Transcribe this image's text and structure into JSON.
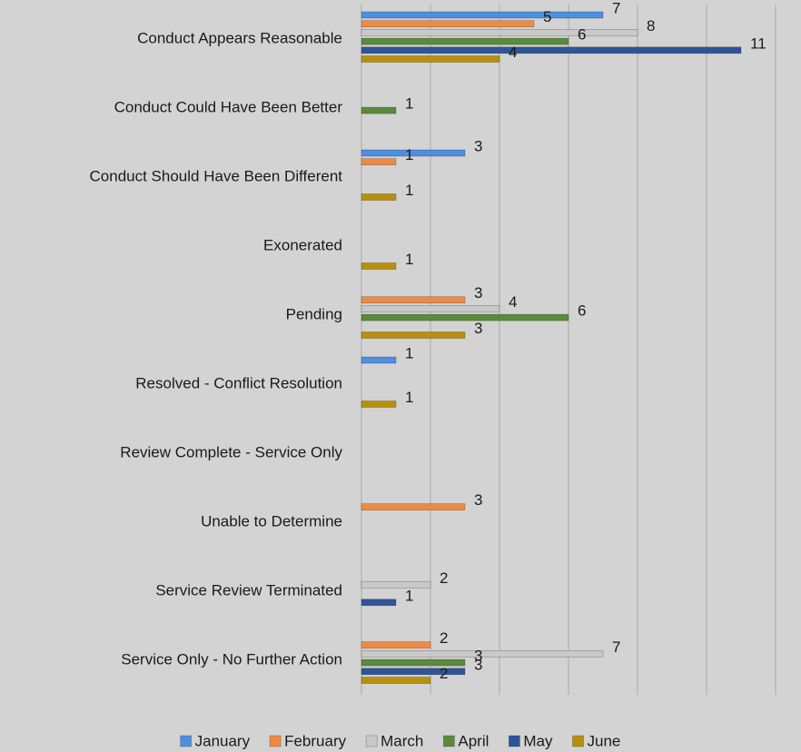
{
  "chart_data": {
    "type": "bar",
    "orientation": "horizontal",
    "categories": [
      "Conduct Appears Reasonable",
      "Conduct Could Have Been Better",
      "Conduct Should Have Been Different",
      "Exonerated",
      "Pending",
      "Resolved - Conflict Resolution",
      "Review Complete - Service Only",
      "Unable to Determine",
      "Service Review Terminated",
      "Service Only - No Further Action"
    ],
    "series": [
      {
        "name": "January",
        "color": "#4f8fe0",
        "values": [
          7,
          null,
          3,
          null,
          null,
          1,
          null,
          null,
          null,
          null
        ]
      },
      {
        "name": "February",
        "color": "#ef8a45",
        "values": [
          5,
          null,
          1,
          null,
          3,
          null,
          null,
          3,
          null,
          2
        ]
      },
      {
        "name": "March",
        "color": "#c9c9c9",
        "values": [
          8,
          null,
          null,
          null,
          4,
          null,
          null,
          null,
          2,
          7
        ]
      },
      {
        "name": "April",
        "color": "#5a8a3c",
        "values": [
          6,
          1,
          null,
          null,
          6,
          null,
          null,
          null,
          null,
          3
        ]
      },
      {
        "name": "May",
        "color": "#2f5597",
        "values": [
          11,
          null,
          null,
          null,
          null,
          null,
          null,
          null,
          1,
          3
        ]
      },
      {
        "name": "June",
        "color": "#b8900a",
        "values": [
          4,
          null,
          1,
          1,
          3,
          1,
          null,
          null,
          null,
          2
        ]
      }
    ],
    "xlim": [
      0,
      12
    ],
    "xticks": [
      0,
      2,
      4,
      6,
      8,
      10,
      12
    ],
    "grid": true,
    "legend": "bottom"
  }
}
